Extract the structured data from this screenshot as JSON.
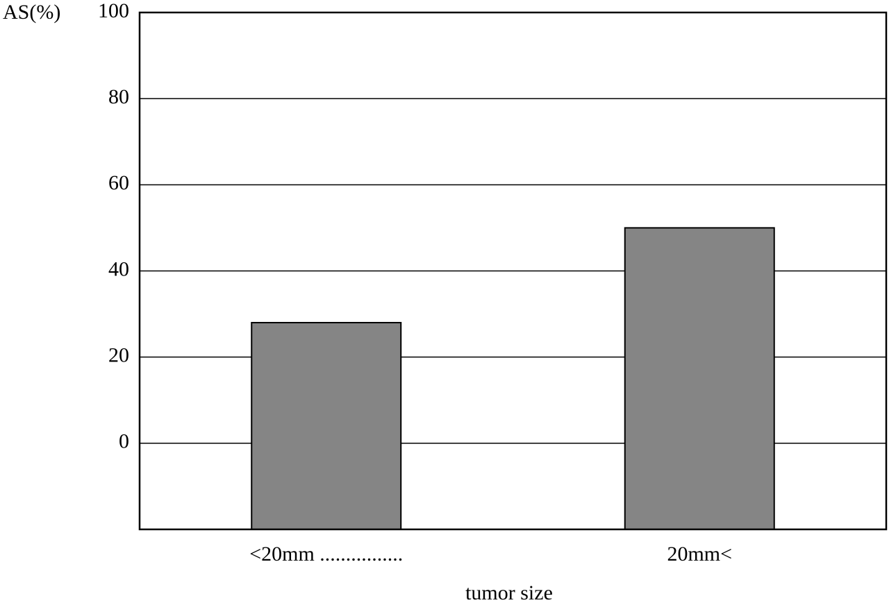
{
  "chart_data": {
    "type": "bar",
    "y_label": "AS(%)",
    "x_label": "tumor size",
    "categories": [
      "<20mm ................",
      "20mm<"
    ],
    "values": [
      28,
      50
    ],
    "color": "#858585",
    "ylim": [
      -20,
      100
    ],
    "yticks": [
      0,
      20,
      40,
      60,
      80,
      100
    ],
    "grid": true
  }
}
